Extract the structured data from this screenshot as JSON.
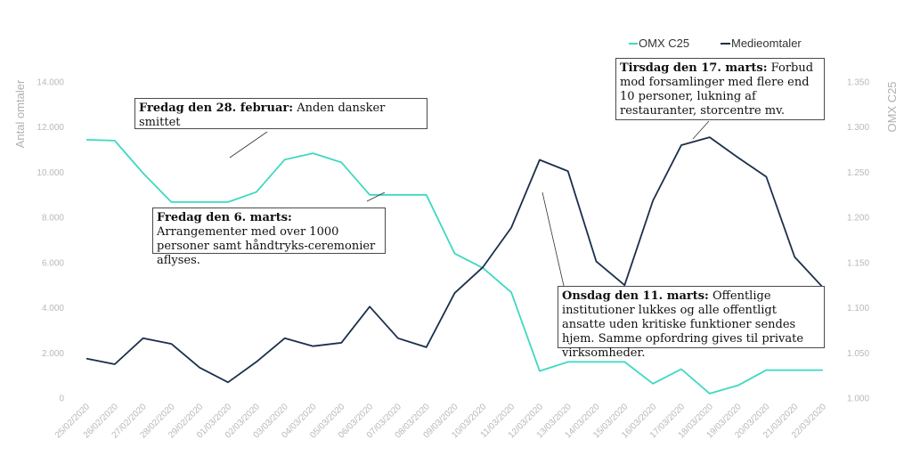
{
  "chart_data": {
    "type": "line",
    "categories": [
      "25/02/2020",
      "26/02/2020",
      "27/02/2020",
      "28/02/2020",
      "29/02/2020",
      "01/03/2020",
      "02/03/2020",
      "03/03/2020",
      "04/03/2020",
      "05/03/2020",
      "06/03/2020",
      "07/03/2020",
      "08/03/2020",
      "09/03/2020",
      "10/03/2020",
      "11/03/2020",
      "12/03/2020",
      "13/03/2020",
      "14/03/2020",
      "15/03/2020",
      "16/03/2020",
      "17/03/2020",
      "18/03/2020",
      "19/03/2020",
      "20/03/2020",
      "21/03/2020",
      "22/03/2020"
    ],
    "series": [
      {
        "name": "OMX C25",
        "axis": "right",
        "color": "#3dd9c1",
        "values": [
          1.286,
          1.285,
          1.249,
          1.217,
          1.217,
          1.217,
          1.228,
          1.264,
          1.271,
          1.261,
          1.225,
          1.225,
          1.225,
          1.16,
          1.144,
          1.117,
          1.03,
          1.04,
          1.04,
          1.04,
          1.016,
          1.032,
          1.005,
          1.014,
          1.031,
          1.031,
          1.031
        ]
      },
      {
        "name": "Medieomtaler",
        "axis": "left",
        "color": "#1b2f4b",
        "values": [
          1750,
          1500,
          2650,
          2400,
          1350,
          700,
          1600,
          2650,
          2300,
          2450,
          4050,
          2650,
          2250,
          4650,
          5800,
          7550,
          10550,
          10050,
          6050,
          5000,
          8750,
          11200,
          11550,
          10650,
          9800,
          6250,
          4900
        ]
      }
    ],
    "left_axis": {
      "label": "Antal omtaler",
      "min": 0,
      "max": 14000,
      "ticks": [
        "0",
        "2.000",
        "4.000",
        "6.000",
        "8.000",
        "10.000",
        "12.000",
        "14.000"
      ]
    },
    "right_axis": {
      "label": "OMX C25",
      "min": 1.0,
      "max": 1.35,
      "ticks": [
        "1.000",
        "1.050",
        "1.100",
        "1.150",
        "1.200",
        "1.250",
        "1.300",
        "1.350"
      ]
    },
    "legend": {
      "position": "top-right",
      "items": [
        {
          "label": "OMX C25",
          "color": "#3dd9c1"
        },
        {
          "label": "Medieomtaler",
          "color": "#1b2f4b"
        }
      ]
    },
    "grid": false,
    "annotations": [
      {
        "bold": "Fredag den 28. februar:",
        "text": " Anden dansker smittet"
      },
      {
        "bold": "Fredag den 6. marts:",
        "text": "  Arrangementer med over 1000 personer samt håndtryks-ceremonier aflyses."
      },
      {
        "bold": "Tirsdag den 17. marts:",
        "text": " Forbud mod forsamlinger med flere end 10 personer, lukning af restauranter, storcentre mv."
      },
      {
        "bold": "Onsdag den 11. marts:",
        "text": " Offentlige institutioner lukkes og alle offentligt ansatte uden kritiske funktioner sendes hjem. Samme opfordring gives til private virksomheder."
      }
    ]
  }
}
